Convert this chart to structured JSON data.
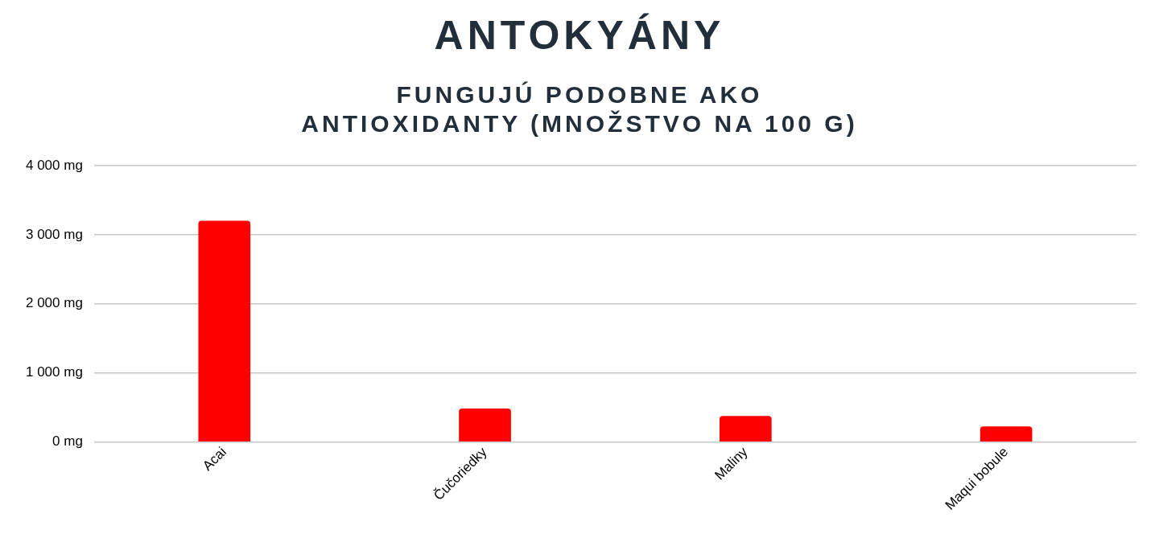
{
  "chart_data": {
    "type": "bar",
    "title": "ANTOKYÁNY",
    "subtitle": "FUNGUJÚ PODOBNE AKO\nANTIOXIDANTY (MNOŽSTVO NA 100 G)",
    "categories": [
      "Acai",
      "Čučoriedky",
      "Maliny",
      "Maqui bobule"
    ],
    "values": [
      3200,
      480,
      370,
      220
    ],
    "color": "#ff0000",
    "ylim": [
      0,
      4000
    ],
    "yticks": [
      {
        "value": 0,
        "label": "0 mg"
      },
      {
        "value": 1000,
        "label": "1 000 mg"
      },
      {
        "value": 2000,
        "label": "2 000 mg"
      },
      {
        "value": 3000,
        "label": "3 000 mg"
      },
      {
        "value": 4000,
        "label": "4 000 mg"
      }
    ],
    "grid": "y",
    "legend": false
  }
}
